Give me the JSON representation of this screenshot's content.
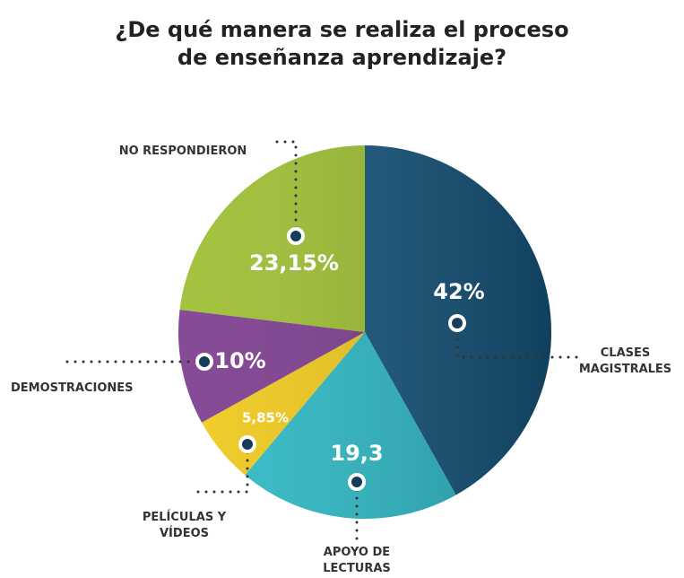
{
  "chart_data": {
    "type": "pie",
    "title": "¿De qué manera se realiza el proceso de enseñanza aprendizaje?",
    "categories": [
      "CLASES MAGISTRALES",
      "APOYO DE LECTURAS",
      "PELÍCULAS Y VÍDEOS",
      "DEMOSTRACIONES",
      "NO RESPONDIERON"
    ],
    "values": [
      42,
      19.3,
      5.85,
      10,
      23.15
    ],
    "value_labels": [
      "42%",
      "19,3",
      "5,85%",
      "10%",
      "23,15%"
    ],
    "colors": [
      "#145278",
      "#2bb8c4",
      "#f0c919",
      "#7b3b8d",
      "#9cbe2f"
    ]
  }
}
